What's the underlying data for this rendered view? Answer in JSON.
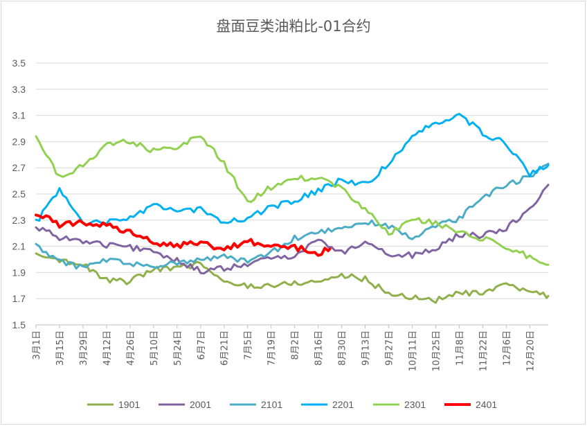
{
  "chart_data": {
    "type": "line",
    "title": "盘面豆类油粕比-01合约",
    "ylim": [
      1.5,
      3.5
    ],
    "yticks": [
      "1.5",
      "1.7",
      "1.9",
      "2.1",
      "2.3",
      "2.5",
      "2.7",
      "2.9",
      "3.1",
      "3.3",
      "3.5"
    ],
    "x_axis_kind": "date",
    "x_ticks": [
      "3月1日",
      "3月15日",
      "3月29日",
      "4月12日",
      "4月26日",
      "5月10日",
      "5月24日",
      "6月7日",
      "6月21日",
      "7月5日",
      "7月19日",
      "8月2日",
      "8月16日",
      "8月30日",
      "9月13日",
      "9月27日",
      "10月11日",
      "10月25日",
      "11月8日",
      "11月22日",
      "12月6日",
      "12月20日"
    ],
    "x_start": "3月1日",
    "x_end": "12月31日",
    "gridlines": true,
    "legend_position": "bottom",
    "series": [
      {
        "name": "1901",
        "color": "#8fb04a",
        "width": 3,
        "points": [
          [
            "3月1日",
            2.06
          ],
          [
            "3月15日",
            2.0
          ],
          [
            "3月29日",
            1.96
          ],
          [
            "4月12日",
            1.84
          ],
          [
            "4月26日",
            1.83
          ],
          [
            "5月10日",
            1.93
          ],
          [
            "5月24日",
            1.93
          ],
          [
            "6月7日",
            1.97
          ],
          [
            "6月21日",
            1.82
          ],
          [
            "7月5日",
            1.8
          ],
          [
            "7月19日",
            1.8
          ],
          [
            "8月2日",
            1.82
          ],
          [
            "8月16日",
            1.83
          ],
          [
            "8月30日",
            1.88
          ],
          [
            "9月13日",
            1.85
          ],
          [
            "9月27日",
            1.74
          ],
          [
            "10月11日",
            1.71
          ],
          [
            "10月25日",
            1.69
          ],
          [
            "11月8日",
            1.74
          ],
          [
            "11月22日",
            1.74
          ],
          [
            "12月6日",
            1.8
          ],
          [
            "12月20日",
            1.76
          ],
          [
            "12月31日",
            1.72
          ]
        ]
      },
      {
        "name": "2001",
        "color": "#8064a2",
        "width": 3,
        "points": [
          [
            "3月1日",
            2.24
          ],
          [
            "3月15日",
            2.17
          ],
          [
            "3月29日",
            2.14
          ],
          [
            "4月12日",
            2.11
          ],
          [
            "4月26日",
            2.09
          ],
          [
            "5月10日",
            2.07
          ],
          [
            "5月24日",
            1.99
          ],
          [
            "6月7日",
            1.91
          ],
          [
            "6月21日",
            1.93
          ],
          [
            "7月5日",
            1.96
          ],
          [
            "7月19日",
            2.01
          ],
          [
            "8月2日",
            2.03
          ],
          [
            "8月16日",
            2.15
          ],
          [
            "8月30日",
            2.05
          ],
          [
            "9月13日",
            2.14
          ],
          [
            "9月27日",
            2.04
          ],
          [
            "10月11日",
            2.03
          ],
          [
            "10月25日",
            2.08
          ],
          [
            "11月8日",
            2.19
          ],
          [
            "11月22日",
            2.18
          ],
          [
            "12月6日",
            2.24
          ],
          [
            "12月20日",
            2.38
          ],
          [
            "12月31日",
            2.57
          ]
        ]
      },
      {
        "name": "2101",
        "color": "#4bacc6",
        "width": 3,
        "points": [
          [
            "3月1日",
            2.1
          ],
          [
            "3月15日",
            1.98
          ],
          [
            "3月29日",
            1.94
          ],
          [
            "4月12日",
            1.99
          ],
          [
            "4月26日",
            1.97
          ],
          [
            "5月10日",
            1.95
          ],
          [
            "5月24日",
            1.98
          ],
          [
            "6月7日",
            1.99
          ],
          [
            "6月21日",
            2.02
          ],
          [
            "7月5日",
            1.98
          ],
          [
            "7月19日",
            2.05
          ],
          [
            "8月2日",
            2.16
          ],
          [
            "8月16日",
            2.2
          ],
          [
            "8月30日",
            2.24
          ],
          [
            "9月13日",
            2.29
          ],
          [
            "9月27日",
            2.25
          ],
          [
            "10月11日",
            2.16
          ],
          [
            "10月25日",
            2.25
          ],
          [
            "11月8日",
            2.31
          ],
          [
            "11月22日",
            2.48
          ],
          [
            "12月6日",
            2.56
          ],
          [
            "12月20日",
            2.64
          ],
          [
            "12月31日",
            2.73
          ]
        ]
      },
      {
        "name": "2201",
        "color": "#00b0f0",
        "width": 3,
        "points": [
          [
            "3月1日",
            2.28
          ],
          [
            "3月15日",
            2.53
          ],
          [
            "3月29日",
            2.28
          ],
          [
            "4月12日",
            2.28
          ],
          [
            "4月26日",
            2.33
          ],
          [
            "5月10日",
            2.41
          ],
          [
            "5月24日",
            2.36
          ],
          [
            "6月7日",
            2.39
          ],
          [
            "6月21日",
            2.28
          ],
          [
            "7月5日",
            2.32
          ],
          [
            "7月19日",
            2.4
          ],
          [
            "8月2日",
            2.45
          ],
          [
            "8月16日",
            2.52
          ],
          [
            "8月30日",
            2.61
          ],
          [
            "9月13日",
            2.57
          ],
          [
            "9月27日",
            2.73
          ],
          [
            "10月11日",
            2.95
          ],
          [
            "10月25日",
            3.05
          ],
          [
            "11月8日",
            3.1
          ],
          [
            "11月22日",
            2.97
          ],
          [
            "12月6日",
            2.88
          ],
          [
            "12月20日",
            2.65
          ],
          [
            "12月31日",
            2.72
          ]
        ]
      },
      {
        "name": "2301",
        "color": "#92d050",
        "width": 3,
        "points": [
          [
            "3月1日",
            2.92
          ],
          [
            "3月15日",
            2.63
          ],
          [
            "3月29日",
            2.72
          ],
          [
            "4月12日",
            2.88
          ],
          [
            "4月26日",
            2.9
          ],
          [
            "5月10日",
            2.83
          ],
          [
            "5月24日",
            2.85
          ],
          [
            "6月7日",
            2.95
          ],
          [
            "6月21日",
            2.73
          ],
          [
            "7月5日",
            2.44
          ],
          [
            "7月19日",
            2.55
          ],
          [
            "8月2日",
            2.62
          ],
          [
            "8月16日",
            2.62
          ],
          [
            "8月30日",
            2.55
          ],
          [
            "9月13日",
            2.38
          ],
          [
            "9月27日",
            2.2
          ],
          [
            "10月11日",
            2.3
          ],
          [
            "10月25日",
            2.28
          ],
          [
            "11月8日",
            2.2
          ],
          [
            "11月22日",
            2.16
          ],
          [
            "12月6日",
            2.1
          ],
          [
            "12月20日",
            2.02
          ],
          [
            "12月31日",
            1.96
          ]
        ]
      },
      {
        "name": "2401",
        "color": "#ff0000",
        "width": 4,
        "points": [
          [
            "3月1日",
            2.36
          ],
          [
            "3月15日",
            2.26
          ],
          [
            "3月29日",
            2.28
          ],
          [
            "4月12日",
            2.26
          ],
          [
            "4月26日",
            2.21
          ],
          [
            "5月10日",
            2.13
          ],
          [
            "5月24日",
            2.11
          ],
          [
            "6月7日",
            2.12
          ],
          [
            "6月21日",
            2.08
          ],
          [
            "7月5日",
            2.14
          ],
          [
            "7月19日",
            2.11
          ],
          [
            "8月2日",
            2.09
          ],
          [
            "8月16日",
            2.05
          ],
          [
            "8月23日",
            2.08
          ]
        ]
      }
    ]
  }
}
